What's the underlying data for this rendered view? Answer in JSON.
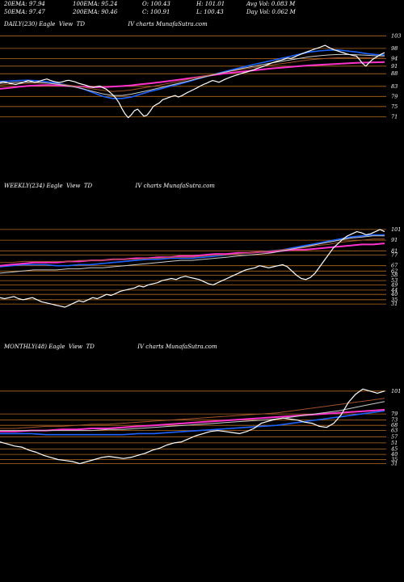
{
  "header": {
    "row1": [
      "20EMA: 97.94",
      "100EMA: 95.24",
      "O: 100.43",
      "H: 101.01",
      "Avg Vol: 0.083 M"
    ],
    "row2": [
      "50EMA: 97.47",
      "200EMA: 90.46",
      "C: 100.91",
      "L: 100.43",
      "Day Vol: 0.062 M"
    ]
  },
  "colors": {
    "background": "#000000",
    "price": "#ffffff",
    "ema_fast": "#1e63ff",
    "ema_slow": "#ff33cc",
    "ema_brown": "#a0522d",
    "ema_white": "#cccccc",
    "grid": "#b36b1f"
  },
  "panels": [
    {
      "title": "DAILY(230) Eagle  View  TD                        IV charts MunafaSutra.com",
      "ticks": [
        "103",
        "98",
        "94",
        "91",
        "88",
        "83",
        "79",
        "75",
        "71"
      ]
    },
    {
      "title": "WEEKLY(234) Eagle  View  TD                        IV charts MunafaSutra.com",
      "ticks": [
        "101",
        "91",
        "81",
        "77",
        "67",
        "62",
        "58",
        "53",
        "49",
        "44",
        "40",
        "35",
        "31"
      ]
    },
    {
      "title": "MONTHLY(48) Eagle  View  TD                        IV charts MunafaSutra.com",
      "ticks": [
        "101",
        "79",
        "73",
        "68",
        "63",
        "57",
        "51",
        "45",
        "40",
        "35",
        "31"
      ]
    }
  ],
  "chart_data": [
    {
      "type": "line",
      "timeframe": "daily",
      "ticks": [
        103,
        98,
        94,
        91,
        88,
        83,
        79,
        75,
        71
      ],
      "ylim": [
        66,
        105
      ],
      "series": [
        {
          "role": "price",
          "values": [
            84.5,
            84.8,
            84.6,
            84.2,
            84.0,
            83.7,
            84.1,
            84.4,
            84.9,
            85.3,
            85.0,
            84.6,
            84.8,
            85.2,
            85.6,
            85.9,
            85.4,
            85.0,
            84.7,
            84.5,
            84.8,
            85.2,
            85.4,
            85.1,
            84.8,
            84.3,
            83.9,
            83.6,
            83.2,
            82.8,
            82.6,
            82.9,
            83.1,
            82.4,
            81.9,
            80.8,
            79.7,
            78.4,
            76.6,
            74.2,
            72.1,
            70.6,
            71.8,
            73.4,
            74.0,
            72.6,
            71.2,
            71.6,
            73.2,
            75.0,
            75.8,
            76.5,
            77.7,
            78.1,
            78.6,
            79.0,
            79.4,
            78.8,
            79.2,
            79.9,
            80.6,
            81.2,
            81.8,
            82.4,
            83.1,
            83.7,
            84.2,
            84.8,
            85.3,
            85.0,
            84.6,
            85.2,
            85.8,
            86.3,
            86.8,
            87.2,
            87.6,
            88.0,
            88.4,
            88.7,
            89.1,
            89.5,
            90.0,
            90.4,
            90.8,
            91.3,
            91.8,
            92.3,
            92.7,
            93.1,
            93.4,
            93.8,
            94.2,
            94.0,
            94.5,
            95.1,
            95.6,
            96.1,
            96.6,
            97.0,
            97.5,
            97.9,
            98.3,
            98.8,
            99.2,
            98.5,
            97.9,
            97.4,
            97.0,
            96.6,
            96.2,
            95.8,
            95.5,
            95.2,
            95.0,
            93.6,
            92.0,
            91.0,
            92.3,
            93.5,
            94.3,
            95.1,
            95.8,
            96.3
          ]
        },
        {
          "role": "ema",
          "color": "#1e63ff",
          "values": [
            85.0,
            85.1,
            85.3,
            85.4,
            85.2,
            84.8,
            84.3,
            83.6,
            82.9,
            81.8,
            80.4,
            79.0,
            78.2,
            78.2,
            78.8,
            79.9,
            81.0,
            81.9,
            82.9,
            83.8,
            84.8,
            85.9,
            86.9,
            87.9,
            88.9,
            89.8,
            90.7,
            91.6,
            92.4,
            93.2,
            94.1,
            94.9,
            95.8,
            96.6,
            97.0,
            97.3,
            97.4,
            97.0,
            96.6,
            96.0,
            95.6,
            95.4
          ]
        },
        {
          "role": "ema",
          "color": "#ff33cc",
          "values": [
            82.0,
            82.4,
            82.8,
            83.2,
            83.4,
            83.5,
            83.4,
            83.2,
            83.0,
            82.8,
            82.7,
            82.7,
            82.9,
            83.1,
            83.4,
            83.8,
            84.2,
            84.6,
            85.1,
            85.6,
            86.1,
            86.6,
            87.1,
            87.6,
            88.1,
            88.5,
            88.9,
            89.3,
            89.7,
            90.1,
            90.4,
            90.7,
            91.0,
            91.3,
            91.5,
            91.7,
            91.9,
            92.1,
            92.3,
            92.4,
            92.5,
            92.6
          ]
        },
        {
          "role": "ema",
          "color": "#a0522d",
          "values": [
            83.5,
            83.8,
            84.0,
            84.2,
            84.3,
            84.3,
            84.0,
            83.6,
            83.2,
            82.6,
            81.9,
            81.4,
            81.0,
            81.2,
            81.6,
            82.2,
            82.8,
            83.5,
            84.2,
            84.9,
            85.7,
            86.5,
            87.2,
            87.9,
            88.6,
            89.2,
            89.8,
            90.4,
            91.0,
            91.5,
            92.0,
            92.5,
            93.0,
            93.5,
            93.8,
            94.1,
            94.3,
            94.4,
            94.4,
            94.3,
            94.2,
            94.1
          ]
        },
        {
          "role": "ema",
          "color": "#cccccc",
          "values": [
            84.2,
            84.4,
            84.6,
            84.7,
            84.6,
            84.3,
            83.9,
            83.3,
            82.7,
            81.9,
            80.9,
            80.0,
            79.4,
            79.4,
            79.9,
            80.7,
            81.5,
            82.4,
            83.3,
            84.2,
            85.1,
            86.0,
            86.9,
            87.8,
            88.6,
            89.4,
            90.2,
            90.9,
            91.6,
            92.3,
            92.9,
            93.5,
            94.1,
            94.7,
            95.1,
            95.4,
            95.6,
            95.6,
            95.5,
            95.3,
            95.1,
            95.0
          ]
        }
      ]
    },
    {
      "type": "line",
      "timeframe": "weekly",
      "ticks": [
        101,
        91,
        81,
        77,
        67,
        62,
        58,
        53,
        49,
        44,
        40,
        35,
        31
      ],
      "ylim": [
        28,
        104
      ],
      "series": [
        {
          "role": "price",
          "values": [
            37,
            36,
            37,
            38,
            36,
            35,
            36,
            37,
            35,
            33,
            32,
            31,
            30,
            29,
            28,
            30,
            32,
            34,
            33,
            35,
            37,
            36,
            38,
            40,
            39,
            41,
            43,
            44,
            45,
            46,
            48,
            47,
            49,
            50,
            51,
            53,
            54,
            55,
            54,
            56,
            57,
            56,
            55,
            54,
            52,
            50,
            49,
            51,
            53,
            55,
            57,
            59,
            61,
            63,
            64,
            65,
            67,
            66,
            65,
            66,
            67,
            68,
            66,
            62,
            58,
            55,
            54,
            56,
            60,
            66,
            72,
            78,
            84,
            88,
            92,
            95,
            97,
            99,
            98,
            96,
            97,
            99,
            101,
            99
          ]
        },
        {
          "role": "ema",
          "color": "#1e63ff",
          "values": [
            66,
            67,
            68,
            68,
            68,
            67,
            67,
            68,
            68,
            69,
            70,
            71,
            72,
            73,
            73,
            74,
            74,
            74,
            75,
            76,
            77,
            78,
            79,
            80,
            81,
            82,
            84,
            86,
            88,
            90,
            92,
            94,
            95,
            96,
            96
          ]
        },
        {
          "role": "ema",
          "color": "#ff33cc",
          "values": [
            67,
            68,
            69,
            70,
            70,
            70,
            71,
            71,
            72,
            72,
            73,
            73,
            74,
            74,
            75,
            75,
            76,
            76,
            77,
            78,
            78,
            79,
            79,
            80,
            80,
            81,
            82,
            82,
            83,
            84,
            85,
            86,
            87,
            87,
            88
          ]
        },
        {
          "role": "ema",
          "color": "#a0522d",
          "values": [
            70,
            70,
            71,
            71,
            71,
            71,
            71,
            72,
            72,
            72,
            73,
            73,
            73,
            74,
            74,
            75,
            75,
            75,
            76,
            77,
            77,
            78,
            79,
            80,
            81,
            82,
            83,
            84,
            86,
            87,
            89,
            90,
            91,
            92,
            92
          ]
        },
        {
          "role": "ema",
          "color": "#cccccc",
          "values": [
            60,
            61,
            62,
            63,
            63,
            63,
            64,
            64,
            65,
            65,
            66,
            67,
            68,
            69,
            70,
            71,
            72,
            72,
            73,
            74,
            75,
            76,
            77,
            78,
            79,
            81,
            83,
            85,
            87,
            89,
            91,
            93,
            94,
            95,
            95
          ]
        }
      ]
    },
    {
      "type": "line",
      "timeframe": "monthly",
      "ticks": [
        101,
        79,
        73,
        68,
        63,
        57,
        51,
        45,
        40,
        35,
        31
      ],
      "ylim": [
        26,
        104
      ],
      "series": [
        {
          "role": "price",
          "values": [
            52,
            50,
            48,
            47,
            44,
            42,
            39,
            37,
            35,
            34,
            33,
            31,
            33,
            35,
            37,
            38,
            37,
            36,
            37,
            39,
            41,
            44,
            46,
            49,
            51,
            52,
            55,
            58,
            60,
            62,
            63,
            62,
            61,
            60,
            62,
            65,
            70,
            72,
            74,
            75,
            74,
            73,
            71,
            70,
            67,
            66,
            70,
            78,
            90,
            98,
            103,
            101,
            99,
            101
          ]
        },
        {
          "role": "ema",
          "color": "#1e63ff",
          "values": [
            60,
            60,
            60,
            59,
            59,
            59,
            59,
            59,
            59,
            60,
            60,
            61,
            62,
            63,
            64,
            65,
            66,
            67,
            68,
            70,
            72,
            74,
            76,
            78,
            80,
            82
          ]
        },
        {
          "role": "ema",
          "color": "#ff33cc",
          "values": [
            62,
            62,
            63,
            63,
            64,
            64,
            65,
            65,
            66,
            67,
            68,
            69,
            70,
            71,
            72,
            73,
            74,
            75,
            76,
            77,
            78,
            79,
            80,
            81,
            82,
            83
          ]
        },
        {
          "role": "ema",
          "color": "#a0522d",
          "values": [
            65,
            65,
            66,
            67,
            67,
            68,
            69,
            69,
            70,
            71,
            72,
            73,
            74,
            75,
            76,
            77,
            78,
            79,
            80,
            82,
            84,
            86,
            88,
            90,
            92,
            94
          ]
        },
        {
          "role": "ema",
          "color": "#cccccc",
          "values": [
            63,
            63,
            63,
            63,
            63,
            63,
            63,
            64,
            64,
            65,
            66,
            67,
            68,
            69,
            70,
            71,
            72,
            73,
            74,
            76,
            78,
            80,
            82,
            85,
            88,
            91
          ]
        }
      ]
    }
  ]
}
